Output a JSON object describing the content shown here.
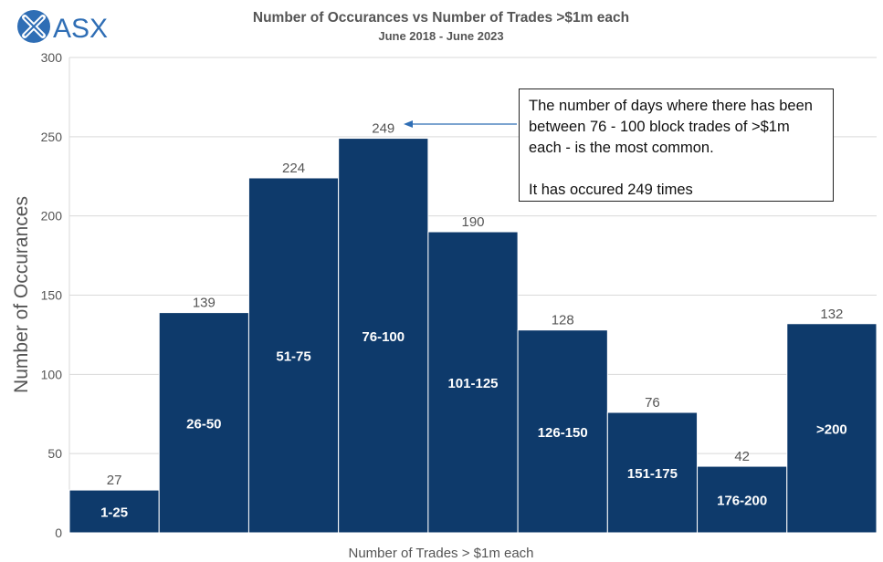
{
  "logo": {
    "text": "ASX",
    "colors": {
      "circle": "#2f6eb5",
      "accent": "#ffffff"
    }
  },
  "chart_data": {
    "type": "bar",
    "title": "Number of Occurances vs Number of Trades  >$1m each",
    "subtitle": "June  2018 - June 2023",
    "xlabel": "Number of Trades > $1m each",
    "ylabel": "Number of Occurances",
    "ylim": [
      0,
      300
    ],
    "yticks": [
      0,
      50,
      100,
      150,
      200,
      250,
      300
    ],
    "grid": true,
    "bar_color": "#0e3a6b",
    "categories": [
      "1-25",
      "26-50",
      "51-75",
      "76-100",
      "101-125",
      "126-150",
      "151-175",
      "176-200",
      ">200"
    ],
    "values": [
      27,
      139,
      224,
      249,
      190,
      128,
      76,
      42,
      132
    ],
    "annotation": {
      "text_line1": "The number of days where there has been between 76 - 100 block trades of >$1m each - is the most common.",
      "text_line2": "It has occured 249 times",
      "points_to": "76-100"
    }
  }
}
